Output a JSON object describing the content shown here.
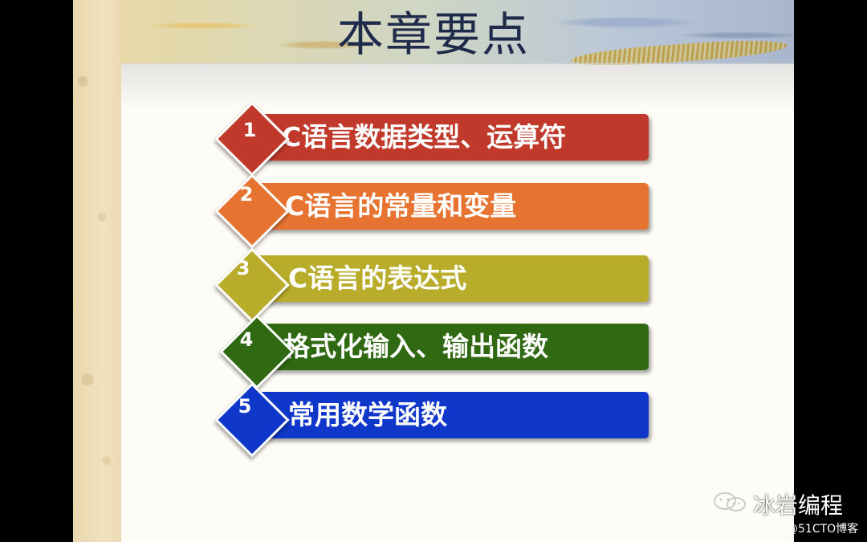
{
  "slide": {
    "title": "本章要点",
    "items": [
      {
        "number": "1",
        "label": "C语言数据类型、运算符",
        "color": "#c0392b"
      },
      {
        "number": "2",
        "label": "C语言的常量和变量",
        "color": "#e67330"
      },
      {
        "number": "3",
        "label": "C语言的表达式",
        "color": "#b9ac2b"
      },
      {
        "number": "4",
        "label": "格式化输入、输出函数",
        "color": "#2f6a12"
      },
      {
        "number": "5",
        "label": "常用数学函数",
        "color": "#0f37c9"
      }
    ]
  },
  "watermark": {
    "name": "冰岩编程",
    "source": "@51CTO博客",
    "icon": "wechat-icon"
  }
}
